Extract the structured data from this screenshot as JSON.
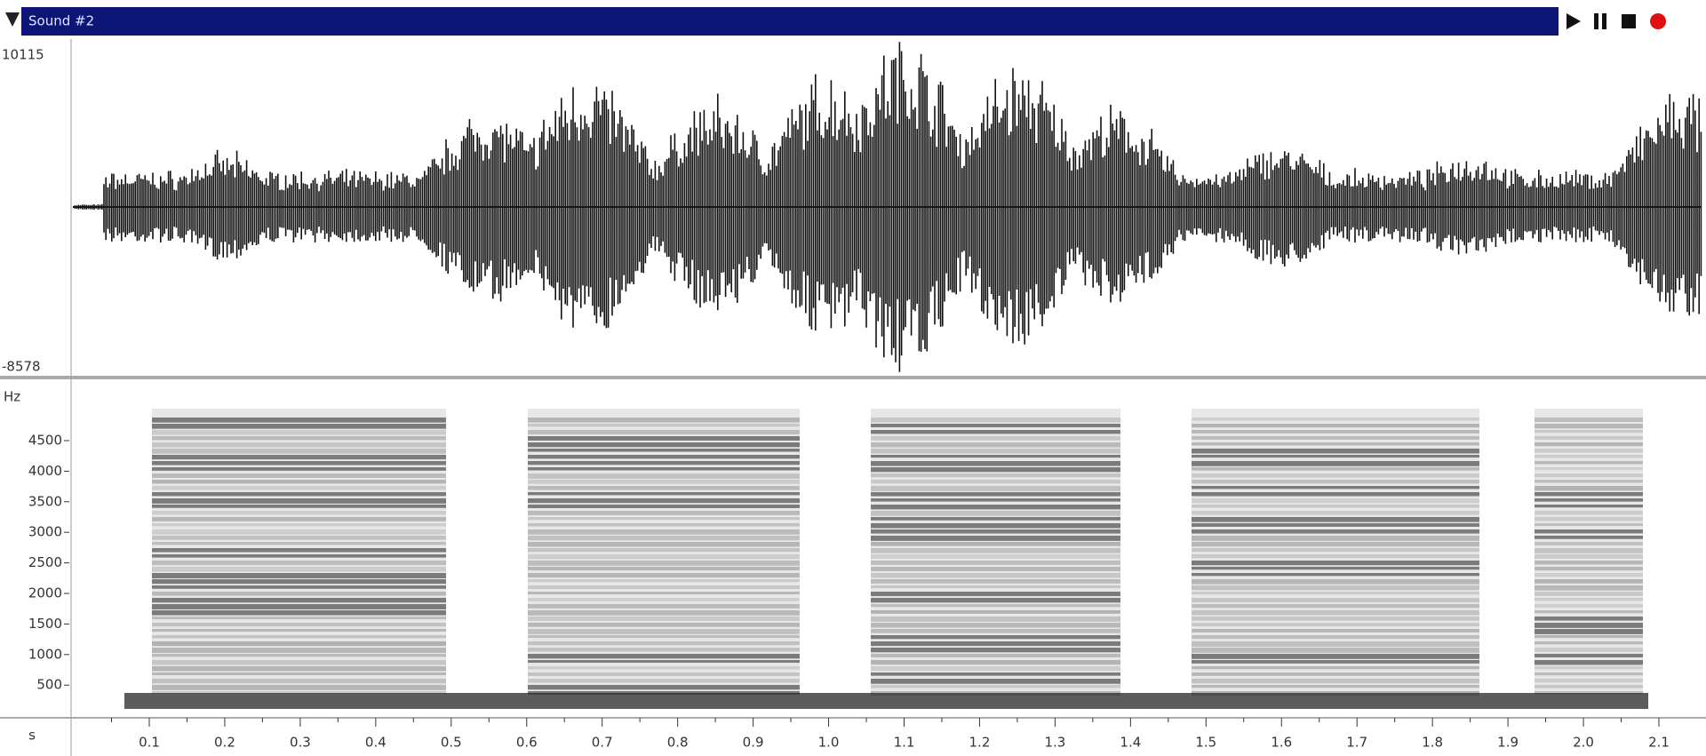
{
  "window": {
    "title": "Sound #2"
  },
  "waveform": {
    "max_label": "10115",
    "min_label": "-8578"
  },
  "spectrogram": {
    "unit_label": "Hz",
    "yticks": [
      "4500",
      "4000",
      "3500",
      "3000",
      "2500",
      "2000",
      "1500",
      "1000",
      "500"
    ]
  },
  "time_axis": {
    "unit_label": "s",
    "ticks": [
      "0.1",
      "0.2",
      "0.3",
      "0.4",
      "0.5",
      "0.6",
      "0.7",
      "0.8",
      "0.9",
      "1.0",
      "1.1",
      "1.2",
      "1.3",
      "1.4",
      "1.5",
      "1.6",
      "1.7",
      "1.8",
      "1.9",
      "2.0",
      "2.1"
    ]
  }
}
